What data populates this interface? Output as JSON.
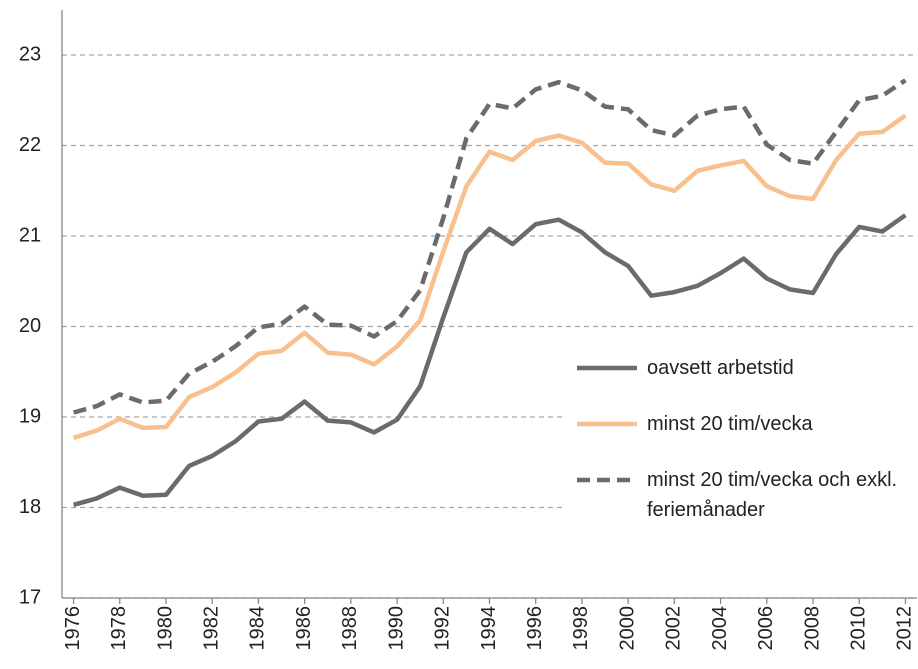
{
  "chart_data": {
    "type": "line",
    "x": [
      1976,
      1977,
      1978,
      1979,
      1980,
      1981,
      1982,
      1983,
      1984,
      1985,
      1986,
      1987,
      1988,
      1989,
      1990,
      1991,
      1992,
      1993,
      1994,
      1995,
      1996,
      1997,
      1998,
      1999,
      2000,
      2001,
      2002,
      2003,
      2004,
      2005,
      2006,
      2007,
      2008,
      2009,
      2010,
      2011,
      2012
    ],
    "xlim": [
      1975.5,
      2012.5
    ],
    "xticks": [
      1976,
      1978,
      1980,
      1982,
      1984,
      1986,
      1988,
      1990,
      1992,
      1994,
      1996,
      1998,
      2000,
      2002,
      2004,
      2006,
      2008,
      2010,
      2012
    ],
    "ylim": [
      17,
      23.5
    ],
    "yticks": [
      17,
      18,
      19,
      20,
      21,
      22,
      23
    ],
    "grid": true,
    "legend": "right",
    "series": [
      {
        "name": "oavsett arbetstid",
        "color": "#6b6b6b",
        "dash": false,
        "values": [
          18.03,
          18.1,
          18.22,
          18.13,
          18.14,
          18.46,
          18.57,
          18.73,
          18.95,
          18.98,
          19.17,
          18.96,
          18.94,
          18.83,
          18.97,
          19.34,
          20.1,
          20.82,
          21.08,
          20.91,
          21.13,
          21.18,
          21.04,
          20.82,
          20.67,
          20.34,
          20.38,
          20.45,
          20.59,
          20.75,
          20.53,
          20.41,
          20.37,
          20.8,
          21.1,
          21.05,
          21.23
        ]
      },
      {
        "name": "minst 20 tim/vecka",
        "color": "#f9c08f",
        "dash": false,
        "values": [
          18.77,
          18.85,
          18.98,
          18.88,
          18.89,
          19.22,
          19.33,
          19.49,
          19.7,
          19.73,
          19.93,
          19.71,
          19.69,
          19.58,
          19.78,
          20.07,
          20.83,
          21.55,
          21.93,
          21.84,
          22.05,
          22.11,
          22.03,
          21.81,
          21.8,
          21.57,
          21.5,
          21.72,
          21.78,
          21.83,
          21.55,
          21.44,
          21.41,
          21.84,
          22.13,
          22.15,
          22.33
        ]
      },
      {
        "name": "minst 20 tim/vecka och exkl. feriemånader",
        "color": "#6b6b6b",
        "dash": true,
        "values": [
          19.05,
          19.12,
          19.25,
          19.16,
          19.18,
          19.48,
          19.61,
          19.78,
          19.99,
          20.03,
          20.22,
          20.02,
          20.01,
          19.89,
          20.06,
          20.4,
          21.2,
          22.08,
          22.46,
          22.41,
          22.62,
          22.7,
          22.61,
          22.43,
          22.4,
          22.17,
          22.11,
          22.33,
          22.4,
          22.43,
          22.01,
          21.84,
          21.8,
          22.15,
          22.5,
          22.55,
          22.72
        ]
      }
    ]
  }
}
